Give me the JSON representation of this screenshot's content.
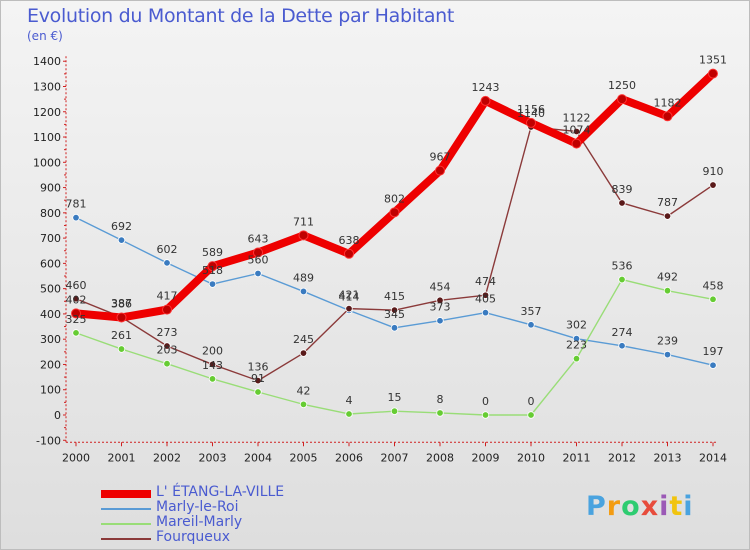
{
  "header": {
    "title": "Evolution du Montant de la Dette par Habitant",
    "unit": "(en €)"
  },
  "logo": {
    "text": "Proxiti",
    "letters": [
      {
        "ch": "P",
        "color": "#4aa3df"
      },
      {
        "ch": "r",
        "color": "#f39c12"
      },
      {
        "ch": "o",
        "color": "#2ecc71"
      },
      {
        "ch": "x",
        "color": "#e74c3c"
      },
      {
        "ch": "i",
        "color": "#9b59b6"
      },
      {
        "ch": "t",
        "color": "#f1c40f"
      },
      {
        "ch": "i",
        "color": "#4aa3df"
      }
    ]
  },
  "chart_data": {
    "type": "line",
    "title": "Evolution du Montant de la Dette par Habitant",
    "ylabel": "(en €)",
    "x": [
      2000,
      2001,
      2002,
      2003,
      2004,
      2005,
      2006,
      2007,
      2008,
      2009,
      2010,
      2011,
      2012,
      2013,
      2014
    ],
    "ylim": [
      -100,
      1400
    ],
    "yticks": [
      -100,
      0,
      100,
      200,
      300,
      400,
      500,
      600,
      700,
      800,
      900,
      1000,
      1100,
      1200,
      1300,
      1400
    ],
    "grid": false,
    "legend_position": "bottom-left",
    "series": [
      {
        "name": "L' ÉTANG-LA-VILLE",
        "color": "#ee0000",
        "marker_color": "#c00000",
        "bold": true,
        "values": [
          402,
          386,
          417,
          589,
          643,
          711,
          638,
          802,
          967,
          1243,
          1156,
          1074,
          1250,
          1182,
          1351
        ]
      },
      {
        "name": "Marly-le-Roi",
        "color": "#5a9bd5",
        "marker_color": "#3a7bc0",
        "bold": false,
        "values": [
          781,
          692,
          602,
          518,
          560,
          489,
          414,
          345,
          373,
          405,
          357,
          302,
          274,
          239,
          197
        ]
      },
      {
        "name": "Mareil-Marly",
        "color": "#99dd77",
        "marker_color": "#66cc33",
        "bold": false,
        "values": [
          325,
          261,
          203,
          143,
          91,
          42,
          4,
          15,
          8,
          0,
          0,
          223,
          536,
          492,
          458
        ]
      },
      {
        "name": "Fourqueux",
        "color": "#8b3a3a",
        "marker_color": "#5a1a1a",
        "bold": false,
        "values": [
          460,
          387,
          273,
          200,
          136,
          245,
          421,
          415,
          454,
          474,
          1140,
          1122,
          839,
          787,
          910
        ]
      }
    ]
  }
}
